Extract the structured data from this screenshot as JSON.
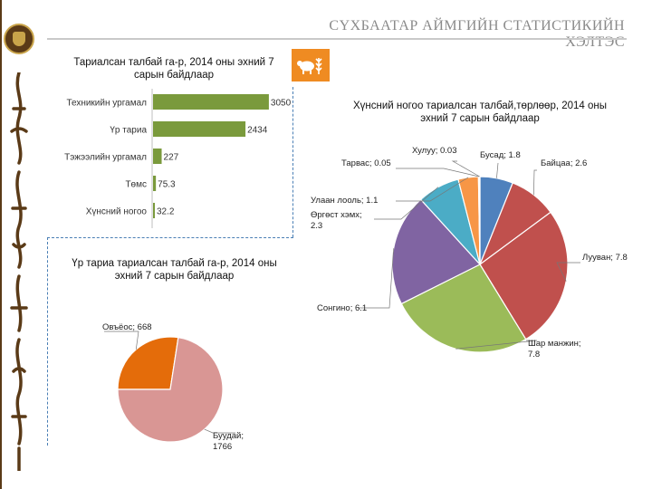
{
  "header": {
    "title": "СҮХБААТАР АЙМГИЙН СТАТИСТИКИЙН ХЭЛТЭС"
  },
  "colors": {
    "sidebar": "#5a3a17",
    "accent": "#ef8b22",
    "divider": "#4a7fb5",
    "bar": "#7a9a3c",
    "pie_wheat": "#d99694",
    "pie_oats": "#e46c0a"
  },
  "icons": {
    "emblem": "state-emblem-icon",
    "farm": "sheep-wheat-icon"
  },
  "chart_data": [
    {
      "id": "cultivated-area-bar",
      "type": "bar",
      "orientation": "horizontal",
      "title": "Тариалсан талбай га-р, 2014 оны эхний 7 сарын байдлаар",
      "categories": [
        "Техникийн ургамал",
        "Үр тариа",
        "Тэжээлийн ургамал",
        "Төмс",
        "Хүнсний ногоо"
      ],
      "values": [
        3050,
        2434,
        227,
        75.3,
        32.2
      ],
      "value_labels": [
        "3050",
        "2434",
        "227",
        "75.3",
        "32.2"
      ],
      "xlim": [
        0,
        3100
      ],
      "grid": false,
      "legend": "none"
    },
    {
      "id": "vegetable-area-pie",
      "type": "pie",
      "title": "Хүнсний ногоо тариалсан талбай,төрлөөр, 2014 оны эхний 7 сарын байдлаар",
      "slices": [
        {
          "label": "Бусад",
          "value": 1.8,
          "color": "#4f81bd",
          "text": "Бусад; 1.8"
        },
        {
          "label": "Байцаа",
          "value": 2.6,
          "color": "#c0504d",
          "text": "Байцаа; 2.6"
        },
        {
          "label": "Лууван",
          "value": 7.8,
          "color": "#c0504d",
          "text": "Лууван; 7.8"
        },
        {
          "label": "Шар манжин",
          "value": 7.8,
          "color": "#9bbb59",
          "text_lines": [
            "Шар манжин;",
            "7.8"
          ]
        },
        {
          "label": "Сонгино",
          "value": 6.1,
          "color": "#8064a2",
          "text": "Сонгино; 6.1"
        },
        {
          "label": "Өргөст хэмх",
          "value": 2.3,
          "color": "#4bacc6",
          "text_lines": [
            "Өргөст хэмх;",
            "2.3"
          ]
        },
        {
          "label": "Улаан лооль",
          "value": 1.1,
          "color": "#f79646",
          "text": "Улаан лооль; 1.1"
        },
        {
          "label": "Тарвас",
          "value": 0.05,
          "color": "#2c4d75",
          "text": "Тарвас; 0.05"
        },
        {
          "label": "Хулуу",
          "value": 0.03,
          "color": "#4f6228",
          "text": "Хулуу; 0.03"
        }
      ],
      "legend": "none"
    },
    {
      "id": "grain-area-pie",
      "type": "pie",
      "title": "Үр тариа тариалсан талбай га-р, 2014 оны эхний 7 сарын байдлаар",
      "slices": [
        {
          "label": "Овъёос",
          "value": 668,
          "color": "#e46c0a",
          "text": "Овъёос; 668"
        },
        {
          "label": "Буудай",
          "value": 1766,
          "color": "#d99694",
          "text_lines": [
            "Буудай;",
            "1766"
          ]
        }
      ],
      "legend": "none"
    }
  ]
}
